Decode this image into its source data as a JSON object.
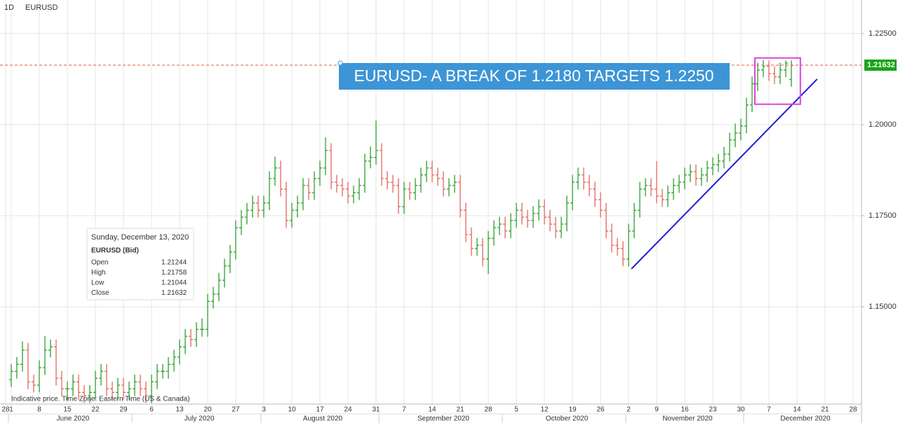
{
  "chart_data": {
    "type": "ohlc",
    "interval": "1D",
    "symbol": "EURUSD",
    "footnote": "Indicative price. Time Zone: Eastern Time (US & Canada)",
    "banner": "EURUSD- A BREAK OF 1.2180 TARGETS 1.2250",
    "up_color": "#2e9e2e",
    "down_color": "#e0675f",
    "grid": true,
    "ylim": [
      1.1233,
      1.2342
    ],
    "yticks": [
      {
        "value": 1.15,
        "label": "1.15000"
      },
      {
        "value": 1.175,
        "label": "1.17500"
      },
      {
        "value": 1.2,
        "label": "1.20000"
      },
      {
        "value": 1.225,
        "label": "1.22500"
      }
    ],
    "last_price": 1.21632,
    "last_price_color": "#1aa31a",
    "last_line_color": "#e05a4a",
    "categories": [
      "28",
      "1",
      null,
      null,
      null,
      null,
      "8",
      null,
      null,
      null,
      null,
      "15",
      null,
      null,
      null,
      null,
      "22",
      null,
      null,
      null,
      null,
      "29",
      null,
      null,
      null,
      null,
      "6",
      null,
      null,
      null,
      null,
      "13",
      null,
      null,
      null,
      null,
      "20",
      null,
      null,
      null,
      null,
      "27",
      null,
      null,
      null,
      null,
      "3",
      null,
      null,
      null,
      null,
      "10",
      null,
      null,
      null,
      null,
      "17",
      null,
      null,
      null,
      null,
      "24",
      null,
      null,
      null,
      null,
      "31",
      null,
      null,
      null,
      null,
      "7",
      null,
      null,
      null,
      null,
      "14",
      null,
      null,
      null,
      null,
      "21",
      null,
      null,
      null,
      null,
      "28",
      null,
      null,
      null,
      null,
      "5",
      null,
      null,
      null,
      null,
      "12",
      null,
      null,
      null,
      null,
      "19",
      null,
      null,
      null,
      null,
      "26",
      null,
      null,
      null,
      null,
      "2",
      null,
      null,
      null,
      null,
      "9",
      null,
      null,
      null,
      null,
      "16",
      null,
      null,
      null,
      null,
      "23",
      null,
      null,
      null,
      null,
      "30",
      null,
      null,
      null,
      null,
      "7",
      null,
      null,
      null,
      null,
      "14",
      null,
      null,
      null,
      null,
      "21",
      null,
      null,
      null,
      null,
      "28",
      null
    ],
    "months": [
      "June 2020",
      "July 2020",
      "August 2020",
      "September 2020",
      "October 2020",
      "November 2020",
      "December 2020"
    ],
    "month_starts": [
      1,
      23,
      46,
      67,
      89,
      111,
      132
    ],
    "ohlc": [
      null,
      [
        1.13,
        1.1343,
        1.128,
        1.1323
      ],
      [
        1.1323,
        1.1362,
        1.1303,
        1.1342
      ],
      [
        1.1342,
        1.1405,
        1.1322,
        1.1381
      ],
      [
        1.1381,
        1.1401,
        1.1274,
        1.1294
      ],
      [
        1.1294,
        1.1314,
        1.1265,
        1.1285
      ],
      [
        1.1285,
        1.1353,
        1.1265,
        1.1333
      ],
      [
        1.1333,
        1.142,
        1.1313,
        1.1381
      ],
      [
        1.1381,
        1.141,
        1.1361,
        1.139
      ],
      [
        1.139,
        1.141,
        1.1284,
        1.1304
      ],
      [
        1.1304,
        1.1324,
        1.1255,
        1.1275
      ],
      [
        1.1275,
        1.1295,
        1.1245,
        1.1275
      ],
      [
        1.1275,
        1.1314,
        1.1255,
        1.1294
      ],
      [
        1.1294,
        1.1314,
        1.1245,
        1.1265
      ],
      [
        1.1265,
        1.1285,
        1.1236,
        1.1256
      ],
      [
        1.1256,
        1.1285,
        1.1236,
        1.1265
      ],
      [
        1.1265,
        1.1324,
        1.1245,
        1.1304
      ],
      [
        1.1304,
        1.1343,
        1.1284,
        1.1323
      ],
      [
        1.1323,
        1.1343,
        1.1255,
        1.1275
      ],
      [
        1.1275,
        1.1295,
        1.1245,
        1.1265
      ],
      [
        1.1265,
        1.1305,
        1.1245,
        1.1285
      ],
      [
        1.1285,
        1.1305,
        1.1245,
        1.1265
      ],
      [
        1.1265,
        1.1295,
        1.1245,
        1.1275
      ],
      [
        1.1275,
        1.1314,
        1.1255,
        1.1294
      ],
      [
        1.1294,
        1.1314,
        1.1255,
        1.1275
      ],
      [
        1.1275,
        1.1295,
        1.1236,
        1.1256
      ],
      [
        1.1256,
        1.1314,
        1.1236,
        1.1294
      ],
      [
        1.1294,
        1.1343,
        1.1274,
        1.1323
      ],
      [
        1.1323,
        1.1343,
        1.1303,
        1.1323
      ],
      [
        1.1323,
        1.1362,
        1.1303,
        1.1342
      ],
      [
        1.1342,
        1.1382,
        1.1322,
        1.1362
      ],
      [
        1.1362,
        1.141,
        1.1342,
        1.139
      ],
      [
        1.139,
        1.1439,
        1.137,
        1.1419
      ],
      [
        1.1419,
        1.1439,
        1.139,
        1.141
      ],
      [
        1.141,
        1.1458,
        1.139,
        1.1438
      ],
      [
        1.1438,
        1.1468,
        1.1418,
        1.1438
      ],
      [
        1.1438,
        1.1535,
        1.1418,
        1.1515
      ],
      [
        1.1515,
        1.1555,
        1.1495,
        1.1535
      ],
      [
        1.1535,
        1.1593,
        1.1515,
        1.1573
      ],
      [
        1.1573,
        1.1632,
        1.1553,
        1.1612
      ],
      [
        1.1612,
        1.167,
        1.1592,
        1.165
      ],
      [
        1.165,
        1.1737,
        1.163,
        1.1717
      ],
      [
        1.1717,
        1.1766,
        1.1697,
        1.1746
      ],
      [
        1.1746,
        1.1785,
        1.1726,
        1.1765
      ],
      [
        1.1765,
        1.1805,
        1.1745,
        1.1785
      ],
      [
        1.1785,
        1.1805,
        1.1745,
        1.1765
      ],
      [
        1.1765,
        1.1805,
        1.1745,
        1.1785
      ],
      [
        1.1785,
        1.1872,
        1.1765,
        1.1852
      ],
      [
        1.1852,
        1.1912,
        1.1832,
        1.1881
      ],
      [
        1.1881,
        1.1901,
        1.1803,
        1.1823
      ],
      [
        1.1823,
        1.1843,
        1.1717,
        1.1737
      ],
      [
        1.1737,
        1.1785,
        1.1717,
        1.1765
      ],
      [
        1.1765,
        1.1805,
        1.1745,
        1.1785
      ],
      [
        1.1785,
        1.1853,
        1.1765,
        1.1833
      ],
      [
        1.1833,
        1.1853,
        1.1793,
        1.1813
      ],
      [
        1.1813,
        1.1872,
        1.1793,
        1.1852
      ],
      [
        1.1852,
        1.1901,
        1.1832,
        1.1881
      ],
      [
        1.1881,
        1.1965,
        1.1861,
        1.1929
      ],
      [
        1.1929,
        1.1949,
        1.1822,
        1.1842
      ],
      [
        1.1842,
        1.1862,
        1.1813,
        1.1833
      ],
      [
        1.1833,
        1.1853,
        1.1803,
        1.1823
      ],
      [
        1.1823,
        1.1843,
        1.1784,
        1.1804
      ],
      [
        1.1804,
        1.1833,
        1.1784,
        1.1813
      ],
      [
        1.1813,
        1.1853,
        1.1793,
        1.1833
      ],
      [
        1.1833,
        1.192,
        1.1813,
        1.19
      ],
      [
        1.19,
        1.194,
        1.188,
        1.191
      ],
      [
        1.191,
        1.2011,
        1.189,
        1.1929
      ],
      [
        1.1929,
        1.1949,
        1.1832,
        1.1852
      ],
      [
        1.1852,
        1.1872,
        1.1822,
        1.1842
      ],
      [
        1.1842,
        1.1862,
        1.1813,
        1.1833
      ],
      [
        1.1833,
        1.1853,
        1.1755,
        1.1775
      ],
      [
        1.1775,
        1.1843,
        1.1755,
        1.1823
      ],
      [
        1.1823,
        1.1843,
        1.1793,
        1.1813
      ],
      [
        1.1813,
        1.1853,
        1.1793,
        1.1833
      ],
      [
        1.1833,
        1.1882,
        1.1813,
        1.1862
      ],
      [
        1.1862,
        1.1901,
        1.1842,
        1.1881
      ],
      [
        1.1881,
        1.1901,
        1.1842,
        1.1862
      ],
      [
        1.1862,
        1.1882,
        1.1832,
        1.1852
      ],
      [
        1.1852,
        1.1872,
        1.1803,
        1.1823
      ],
      [
        1.1823,
        1.1853,
        1.1803,
        1.1833
      ],
      [
        1.1833,
        1.1862,
        1.1813,
        1.1842
      ],
      [
        1.1842,
        1.1862,
        1.1745,
        1.1765
      ],
      [
        1.1765,
        1.1785,
        1.1678,
        1.1698
      ],
      [
        1.1698,
        1.1718,
        1.164,
        1.166
      ],
      [
        1.166,
        1.1689,
        1.164,
        1.1669
      ],
      [
        1.1669,
        1.1689,
        1.1611,
        1.1631
      ],
      [
        1.1631,
        1.1708,
        1.159,
        1.1688
      ],
      [
        1.1688,
        1.1737,
        1.1668,
        1.1717
      ],
      [
        1.1717,
        1.1747,
        1.1697,
        1.1727
      ],
      [
        1.1727,
        1.1747,
        1.1688,
        1.1708
      ],
      [
        1.1708,
        1.1757,
        1.1688,
        1.1737
      ],
      [
        1.1737,
        1.1785,
        1.1717,
        1.1765
      ],
      [
        1.1765,
        1.1785,
        1.1726,
        1.1746
      ],
      [
        1.1746,
        1.1766,
        1.1717,
        1.1737
      ],
      [
        1.1737,
        1.1776,
        1.1717,
        1.1756
      ],
      [
        1.1756,
        1.1795,
        1.1736,
        1.1775
      ],
      [
        1.1775,
        1.1795,
        1.1726,
        1.1746
      ],
      [
        1.1746,
        1.1766,
        1.1707,
        1.1727
      ],
      [
        1.1727,
        1.1747,
        1.1688,
        1.1708
      ],
      [
        1.1708,
        1.1747,
        1.1688,
        1.1727
      ],
      [
        1.1727,
        1.1805,
        1.1707,
        1.1785
      ],
      [
        1.1785,
        1.1862,
        1.1765,
        1.1842
      ],
      [
        1.1842,
        1.1882,
        1.1822,
        1.1862
      ],
      [
        1.1862,
        1.1882,
        1.1822,
        1.1842
      ],
      [
        1.1842,
        1.1862,
        1.1803,
        1.1823
      ],
      [
        1.1823,
        1.1843,
        1.1774,
        1.1794
      ],
      [
        1.1794,
        1.1814,
        1.1745,
        1.1765
      ],
      [
        1.1765,
        1.1785,
        1.1688,
        1.1708
      ],
      [
        1.1708,
        1.1728,
        1.1649,
        1.1669
      ],
      [
        1.1669,
        1.1689,
        1.164,
        1.166
      ],
      [
        1.166,
        1.168,
        1.1611,
        1.1631
      ],
      [
        1.1631,
        1.1728,
        1.1611,
        1.1708
      ],
      [
        1.1708,
        1.1785,
        1.1688,
        1.1765
      ],
      [
        1.1765,
        1.1843,
        1.1745,
        1.1823
      ],
      [
        1.1823,
        1.1853,
        1.1803,
        1.1833
      ],
      [
        1.1833,
        1.1853,
        1.1803,
        1.1823
      ],
      [
        1.1823,
        1.19,
        1.1784,
        1.1804
      ],
      [
        1.1804,
        1.1824,
        1.1774,
        1.1794
      ],
      [
        1.1794,
        1.1833,
        1.1774,
        1.1813
      ],
      [
        1.1813,
        1.1853,
        1.1793,
        1.1833
      ],
      [
        1.1833,
        1.1862,
        1.1813,
        1.1842
      ],
      [
        1.1842,
        1.1882,
        1.1822,
        1.1862
      ],
      [
        1.1862,
        1.1891,
        1.1842,
        1.1871
      ],
      [
        1.1871,
        1.1891,
        1.1832,
        1.1852
      ],
      [
        1.1852,
        1.1882,
        1.1832,
        1.1862
      ],
      [
        1.1862,
        1.1901,
        1.1842,
        1.1881
      ],
      [
        1.1881,
        1.191,
        1.1861,
        1.189
      ],
      [
        1.189,
        1.192,
        1.187,
        1.19
      ],
      [
        1.19,
        1.1939,
        1.188,
        1.1919
      ],
      [
        1.1919,
        1.1978,
        1.1899,
        1.1958
      ],
      [
        1.1958,
        1.2003,
        1.1938,
        1.1977
      ],
      [
        1.1977,
        1.2016,
        1.1957,
        1.1996
      ],
      [
        1.1996,
        1.2074,
        1.1976,
        1.2054
      ],
      [
        1.2054,
        1.2132,
        1.2034,
        1.2112
      ],
      [
        1.2112,
        1.217,
        1.2092,
        1.215
      ],
      [
        1.215,
        1.2177,
        1.213,
        1.216
      ],
      [
        1.216,
        1.2176,
        1.212,
        1.214
      ],
      [
        1.214,
        1.216,
        1.2111,
        1.2131
      ],
      [
        1.2131,
        1.217,
        1.2111,
        1.215
      ],
      [
        1.215,
        1.2176,
        1.213,
        1.2169
      ],
      [
        1.2124,
        1.2176,
        1.2104,
        1.2163
      ],
      null,
      null,
      null,
      null,
      null,
      null,
      null,
      null,
      null,
      null,
      null,
      null
    ],
    "trendline": {
      "color": "#1f1fd0",
      "points": [
        [
          111.5,
          1.1604
        ],
        [
          144.6,
          1.2125
        ]
      ]
    },
    "highlight_box": {
      "color": "#e040e0",
      "x": [
        133.5,
        141.6
      ],
      "y": [
        1.2056,
        1.2183
      ]
    },
    "tooltip": {
      "date": "Sunday, December 13, 2020",
      "series": "EURUSD (Bid)",
      "rows": [
        [
          "Open",
          "1.21244"
        ],
        [
          "High",
          "1.21758"
        ],
        [
          "Low",
          "1.21044"
        ],
        [
          "Close",
          "1.21632"
        ]
      ]
    }
  }
}
